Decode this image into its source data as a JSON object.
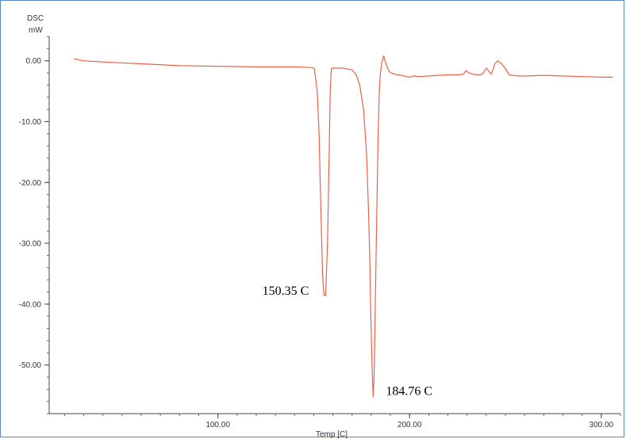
{
  "chart_data": {
    "type": "line",
    "title": "",
    "ylabel_line1": "DSC",
    "ylabel_line2": "mW",
    "xlabel": "Temp  [C]",
    "xlim": [
      12,
      310
    ],
    "ylim": [
      -58,
      4
    ],
    "y_ticks": [
      {
        "value": 0,
        "label": "0.00"
      },
      {
        "value": -10,
        "label": "-10.00"
      },
      {
        "value": -20,
        "label": "-20.00"
      },
      {
        "value": -30,
        "label": "-30.00"
      },
      {
        "value": -40,
        "label": "-40.00"
      },
      {
        "value": -50,
        "label": "-50.00"
      }
    ],
    "x_ticks": [
      {
        "value": 100,
        "label": "100.00"
      },
      {
        "value": 200,
        "label": "200.00"
      },
      {
        "value": 300,
        "label": "300.00"
      }
    ],
    "line_color": "#f06048",
    "series": [
      {
        "x": [
          25,
          30,
          40,
          60,
          80,
          100,
          120,
          140,
          148.5,
          150.3,
          151.8,
          152.8,
          153.4,
          154,
          154.6,
          155.3,
          156.2,
          157.2,
          158,
          158.6,
          159.2,
          160,
          165,
          170,
          172,
          174,
          176,
          177.5,
          178.5,
          179.2,
          179.8,
          180.4,
          181,
          181.5,
          182.1,
          182.9,
          183.6,
          184.2,
          184.8,
          185.5,
          186.5,
          187.5,
          188.5,
          189.5,
          190.5,
          192,
          194,
          196,
          198,
          200,
          202,
          205,
          210,
          215,
          220,
          225,
          228,
          229.5,
          231,
          233,
          236,
          238,
          240,
          242.5,
          243.5,
          244.5,
          246,
          248,
          250,
          252,
          254,
          257,
          260,
          270,
          280,
          290,
          300,
          306
        ],
        "y": [
          0.3,
          0,
          -0.2,
          -0.5,
          -0.8,
          -0.9,
          -1.0,
          -1.0,
          -1.1,
          -1.2,
          -5,
          -12,
          -20,
          -28,
          -35,
          -38.5,
          -38.6,
          -30,
          -16,
          -5,
          -1.3,
          -1.2,
          -1.2,
          -1.5,
          -2.2,
          -4,
          -8,
          -15,
          -24,
          -32,
          -42,
          -50,
          -55.2,
          -52,
          -40,
          -25,
          -12,
          -5,
          -2,
          -0.3,
          0.8,
          -0.3,
          -1.2,
          -1.8,
          -2.0,
          -2.2,
          -2.3,
          -2.4,
          -2.6,
          -2.7,
          -2.5,
          -2.6,
          -2.5,
          -2.4,
          -2.3,
          -2.3,
          -2.2,
          -1.6,
          -2.0,
          -2.2,
          -2.3,
          -2.2,
          -1.2,
          -2.2,
          -1.5,
          -0.5,
          0,
          -0.5,
          -1.3,
          -2.3,
          -2.4,
          -2.5,
          -2.5,
          -2.4,
          -2.5,
          -2.6,
          -2.7,
          -2.7
        ]
      }
    ],
    "annotations": [
      {
        "text": "150.35 C",
        "x": 150.35,
        "y": -38.6,
        "anchor": "left"
      },
      {
        "text": "184.76 C",
        "x": 184.76,
        "y": -55.2,
        "anchor": "right"
      }
    ]
  }
}
